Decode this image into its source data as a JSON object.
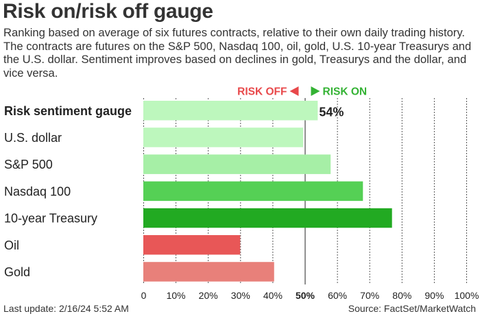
{
  "header": {
    "title": "Risk on/risk off gauge",
    "subtitle": "Ranking based on average of six futures contracts, relative to their own daily trading history. The contracts are futures on the S&P 500, Nasdaq 100, oil, gold, U.S. 10-year Treasurys and the U.S. dollar. Sentiment improves based on declines in gold, Treasurys and the dollar, and vice versa."
  },
  "footer": {
    "last_update": "Last update: 2/16/24 5:52 AM",
    "source": "Source: FactSet/MarketWatch"
  },
  "colors": {
    "risk_off": "#e8484a",
    "risk_on": "#33b233",
    "gridline": "#555555"
  },
  "chart_data": {
    "type": "bar",
    "orientation": "horizontal",
    "risk_off_label": "RISK OFF",
    "risk_on_label": "RISK ON",
    "xlim": [
      0,
      100
    ],
    "midpoint": 50,
    "x_ticks": [
      "0",
      "10%",
      "20%",
      "30%",
      "40%",
      "50%",
      "60%",
      "70%",
      "80%",
      "90%",
      "100%"
    ],
    "grid": "vertical dashed at each 10%, solid at 50%",
    "categories": [
      "Risk sentiment gauge",
      "U.S. dollar",
      "S&P 500",
      "Nasdaq 100",
      "10-year Treasury",
      "Oil",
      "Gold"
    ],
    "values": [
      54,
      49.5,
      58,
      68,
      77,
      30,
      40.5
    ],
    "value_labels": [
      "54%",
      "",
      "",
      "",
      "",
      "",
      ""
    ],
    "bar_colors": [
      "#bdf7bd",
      "#bdf7bd",
      "#a6efa6",
      "#55d055",
      "#22aa22",
      "#e85757",
      "#e8807a"
    ],
    "bold_categories": [
      "Risk sentiment gauge"
    ]
  }
}
